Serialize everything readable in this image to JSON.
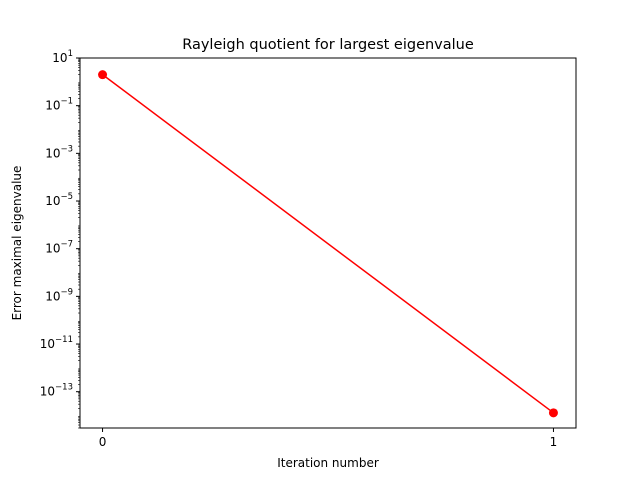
{
  "chart_data": {
    "type": "line",
    "title": "Rayleigh quotient for largest eigenvalue",
    "xlabel": "Iteration number",
    "ylabel": "Error maximal eigenvalue",
    "y_scale": "log",
    "grid": false,
    "legend": "none",
    "xlim": [
      -0.05,
      1.05
    ],
    "ylim": [
      3e-15,
      10
    ],
    "x_ticks": [
      "0",
      "1"
    ],
    "y_ticks": [
      {
        "base": "10",
        "exp": "1"
      },
      {
        "base": "10",
        "exp": "−1"
      },
      {
        "base": "10",
        "exp": "−3"
      },
      {
        "base": "10",
        "exp": "−5"
      },
      {
        "base": "10",
        "exp": "−7"
      },
      {
        "base": "10",
        "exp": "−9"
      },
      {
        "base": "10",
        "exp": "−11"
      },
      {
        "base": "10",
        "exp": "−13"
      }
    ],
    "series": [
      {
        "color": "#ff0000",
        "marker": "circle",
        "x": [
          0,
          1
        ],
        "y": [
          2.0,
          1.3e-14
        ]
      }
    ]
  }
}
